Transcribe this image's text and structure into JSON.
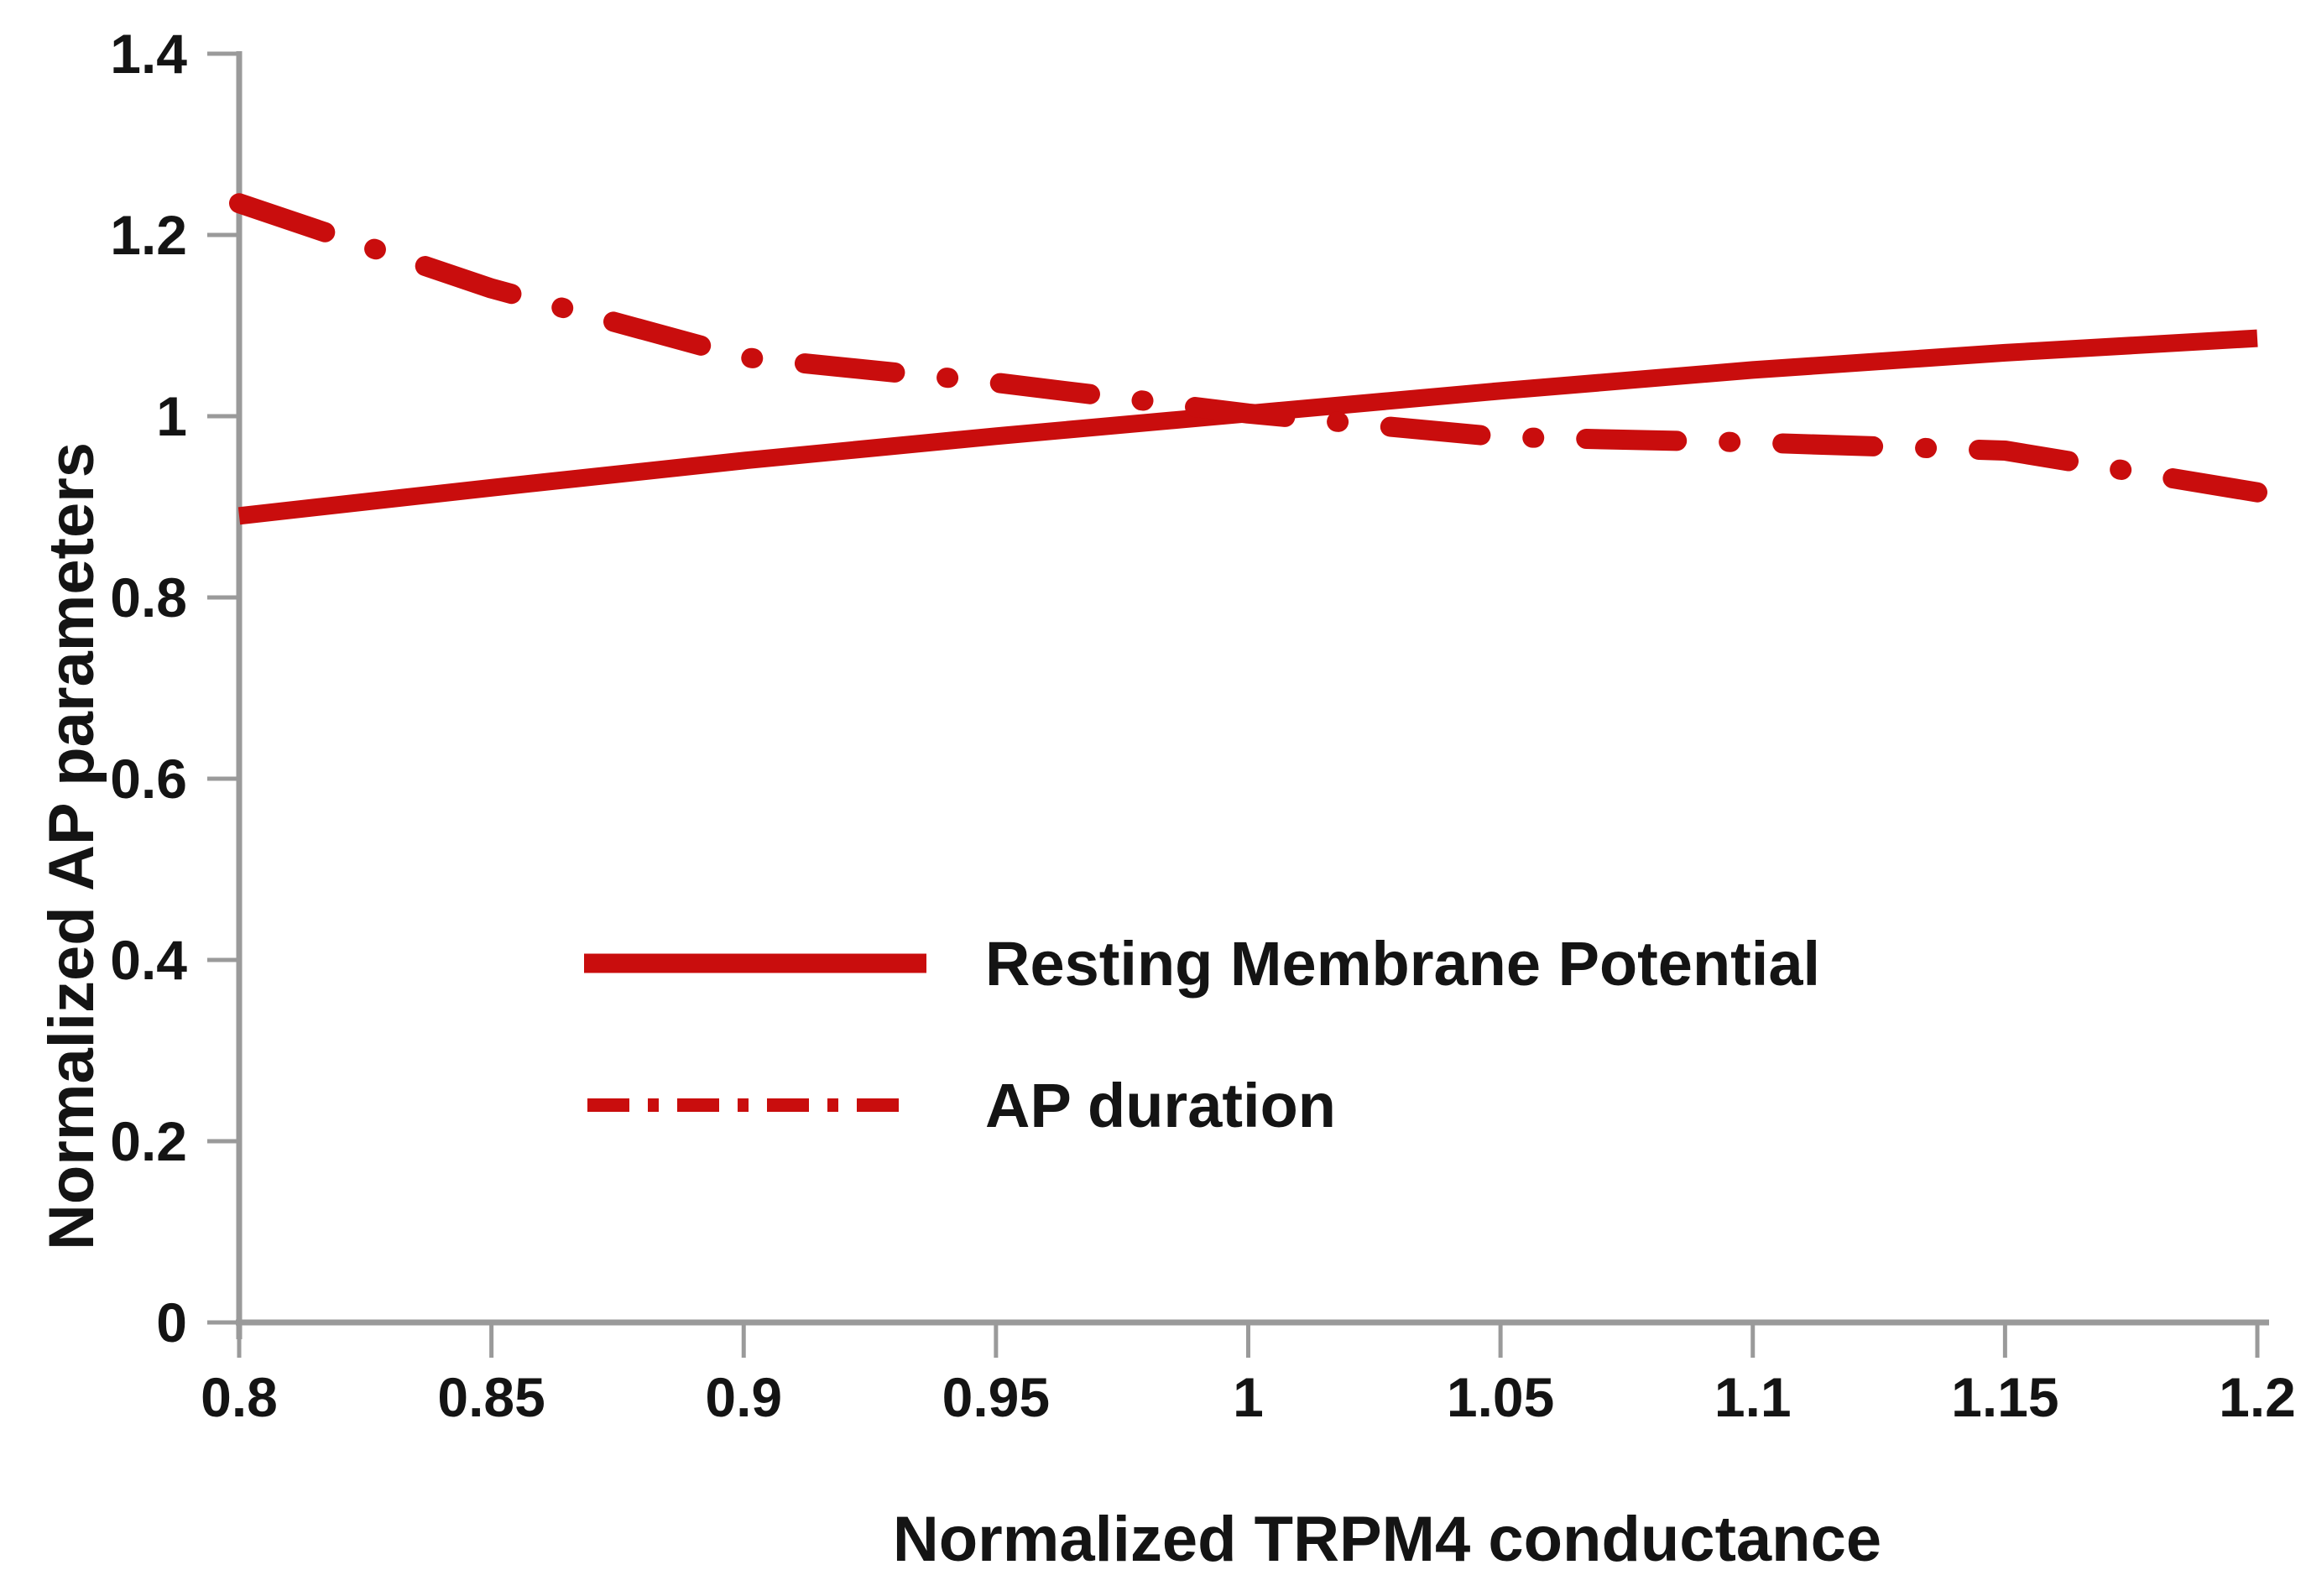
{
  "chart_data": {
    "type": "line",
    "title": "",
    "xlabel": "Normalized TRPM4 conductance",
    "ylabel": "Normalized AP parameters",
    "xlim": [
      0.8,
      1.2
    ],
    "ylim": [
      0,
      1.4
    ],
    "grid": false,
    "legend_position": "inside-center-left",
    "x_ticks": [
      "0.8",
      "0.85",
      "0.9",
      "0.95",
      "1",
      "1.05",
      "1.1",
      "1.15",
      "1.2"
    ],
    "y_ticks": [
      "0",
      "0.2",
      "0.4",
      "0.6",
      "0.8",
      "1",
      "1.2",
      "1.4"
    ],
    "x": [
      0.8,
      0.85,
      0.9,
      0.95,
      1.0,
      1.05,
      1.1,
      1.15,
      1.2
    ],
    "series": [
      {
        "name": "Resting Membrane Potential",
        "style": "solid",
        "values": [
          0.89,
          0.921,
          0.951,
          0.978,
          1.003,
          1.028,
          1.051,
          1.07,
          1.086
        ]
      },
      {
        "name": "AP duration",
        "style": "dash-dot",
        "values": [
          1.235,
          1.141,
          1.065,
          1.037,
          1.003,
          0.977,
          0.971,
          0.962,
          0.916
        ]
      }
    ],
    "colors": {
      "series": "#c90d0d",
      "axis": "#9a9a9a",
      "text": "#141414",
      "background": "#ffffff"
    }
  }
}
